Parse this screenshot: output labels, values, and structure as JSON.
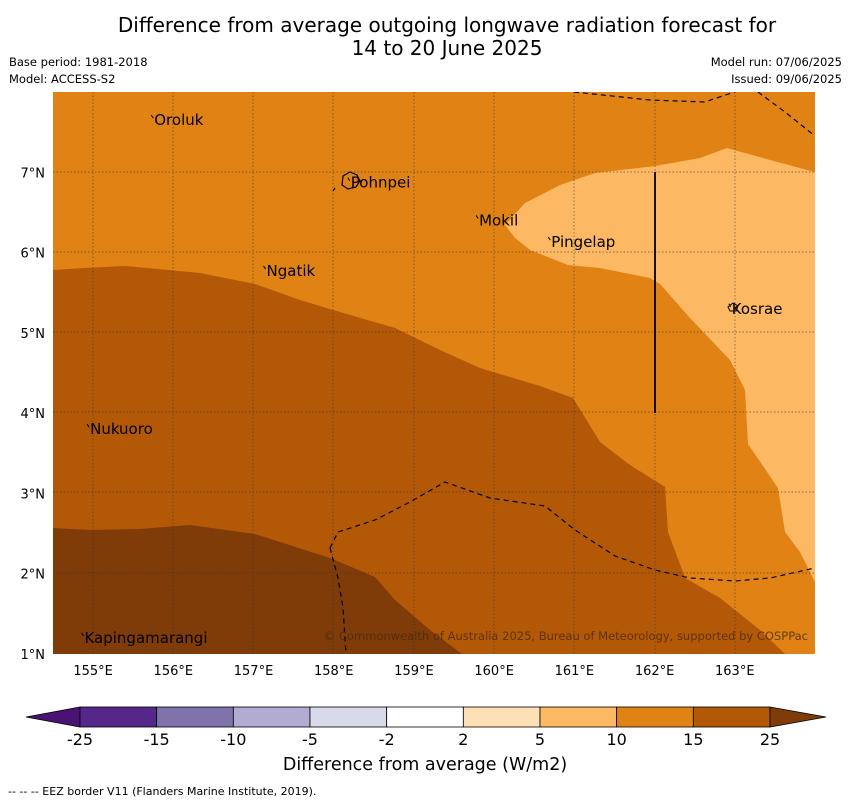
{
  "title": {
    "line1": "Difference from average outgoing longwave radiation forecast for",
    "line2": "14 to 20 June 2025"
  },
  "meta": {
    "base_period": "Base period: 1981-2018",
    "model": "Model: ACCESS-S2",
    "model_run": "Model run: 07/06/2025",
    "issued": "Issued: 09/06/2025"
  },
  "map": {
    "lon_range": [
      154.5,
      164.0
    ],
    "lat_range": [
      1.0,
      8.0
    ],
    "lon_ticks": [
      "155°E",
      "156°E",
      "157°E",
      "158°E",
      "159°E",
      "160°E",
      "161°E",
      "162°E",
      "163°E"
    ],
    "lat_ticks": [
      "1°N",
      "2°N",
      "3°N",
      "4°N",
      "5°N",
      "6°N",
      "7°N"
    ],
    "gridlines": true,
    "colors": {
      "10_15": "#e08214",
      "5_10": "#fdb863",
      "15_25": "#b35806",
      "gt25": "#7f3b08"
    },
    "places": [
      {
        "name": "Oroluk",
        "lon": 155.75,
        "lat": 7.65
      },
      {
        "name": "Pohnpei",
        "lon": 158.2,
        "lat": 6.87
      },
      {
        "name": "Mokil",
        "lon": 159.8,
        "lat": 6.4
      },
      {
        "name": "Pingelap",
        "lon": 160.7,
        "lat": 6.13
      },
      {
        "name": "Ngatik",
        "lon": 157.15,
        "lat": 5.77
      },
      {
        "name": "Kosrae",
        "lon": 162.95,
        "lat": 5.3
      },
      {
        "name": "Nukuoro",
        "lon": 154.95,
        "lat": 3.8
      },
      {
        "name": "Kapingamarangi",
        "lon": 154.88,
        "lat": 1.2
      }
    ],
    "copyright": "© Commonwealth of Australia 2025, Bureau of Meteorology, supported by COSPPac"
  },
  "colorbar": {
    "labels": [
      "-25",
      "-15",
      "-10",
      "-5",
      "-2",
      "2",
      "5",
      "10",
      "15",
      "25"
    ],
    "colors": [
      "#4a1272",
      "#542788",
      "#8073ac",
      "#b2abd2",
      "#d8daeb",
      "#ffffff",
      "#fee0b6",
      "#fdb863",
      "#e08214",
      "#b35806",
      "#7f3b08"
    ],
    "title": "Difference from average (W/m2)"
  },
  "footnote": "--  --  -- EEZ border V11 (Flanders Marine Institute, 2019)."
}
